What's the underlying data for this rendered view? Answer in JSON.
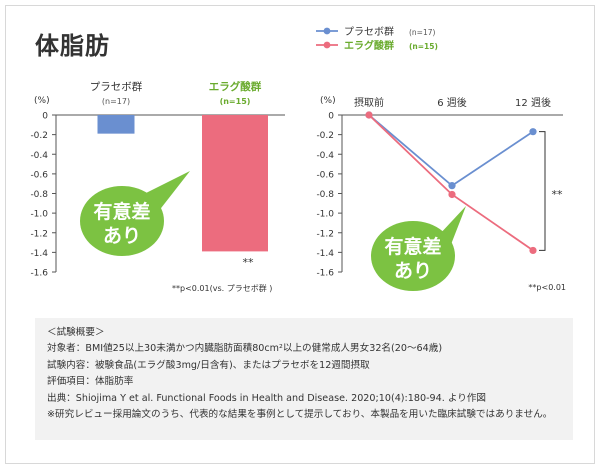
{
  "page": {
    "title": "体脂肪"
  },
  "badge": {
    "line1": "有意差",
    "line2": "あり"
  },
  "colors": {
    "placebo": "#6a8fd0",
    "ellagic": "#ec6c7e",
    "badge": "#7cc242",
    "green_label": "#6aab2e"
  },
  "chart_data": [
    {
      "type": "bar",
      "categories": [
        "プラセボ群",
        "エラグ酸群"
      ],
      "category_sublabels": [
        "(n=17)",
        "(n=15)"
      ],
      "values": [
        -0.19,
        -1.39
      ],
      "ylabel": "(%)",
      "ylim": [
        -1.6,
        0
      ],
      "yticks": [
        "0",
        "-0.2",
        "-0.4",
        "-0.6",
        "-0.8",
        "-1.0",
        "-1.2",
        "-1.4",
        "-1.6"
      ],
      "annotation": "**",
      "footnote": "**p<0.01(vs. プラセボ群 )"
    },
    {
      "type": "line",
      "categories": [
        "摂取前",
        "6 週後",
        "12 週後"
      ],
      "ylabel": "(%)",
      "ylim": [
        -1.6,
        0
      ],
      "yticks": [
        "0",
        "-0.2",
        "-0.4",
        "-0.6",
        "-0.8",
        "-1.0",
        "-1.2",
        "-1.4",
        "-1.6"
      ],
      "series": [
        {
          "name": "プラセボ群",
          "n_label": "(n=17)",
          "values": [
            0,
            -0.72,
            -0.17
          ]
        },
        {
          "name": "エラグ酸群",
          "n_label": "(n=15)",
          "values": [
            0,
            -0.81,
            -1.38
          ]
        }
      ],
      "annotation": "**",
      "footnote": "**p<0.01"
    }
  ],
  "notes": {
    "heading": "＜試験概要＞",
    "subjects": "対象者：BMI値25以上30未満かつ内臓脂肪面積80cm²以上の健常成人男女32名(20〜64歳)",
    "content": "試験内容：被験食品(エラグ酸3mg/日含有)、またはプラセボを12週間摂取",
    "item": "評価項目：体脂肪率",
    "source": "出典：Shiojima Y et al. Functional Foods in Health and Disease. 2020;10(4):180-94. より作図",
    "disclaimer": "※研究レビュー採用論文のうち、代表的な結果を事例として提示しており、本製品を用いた臨床試験ではありません。"
  }
}
